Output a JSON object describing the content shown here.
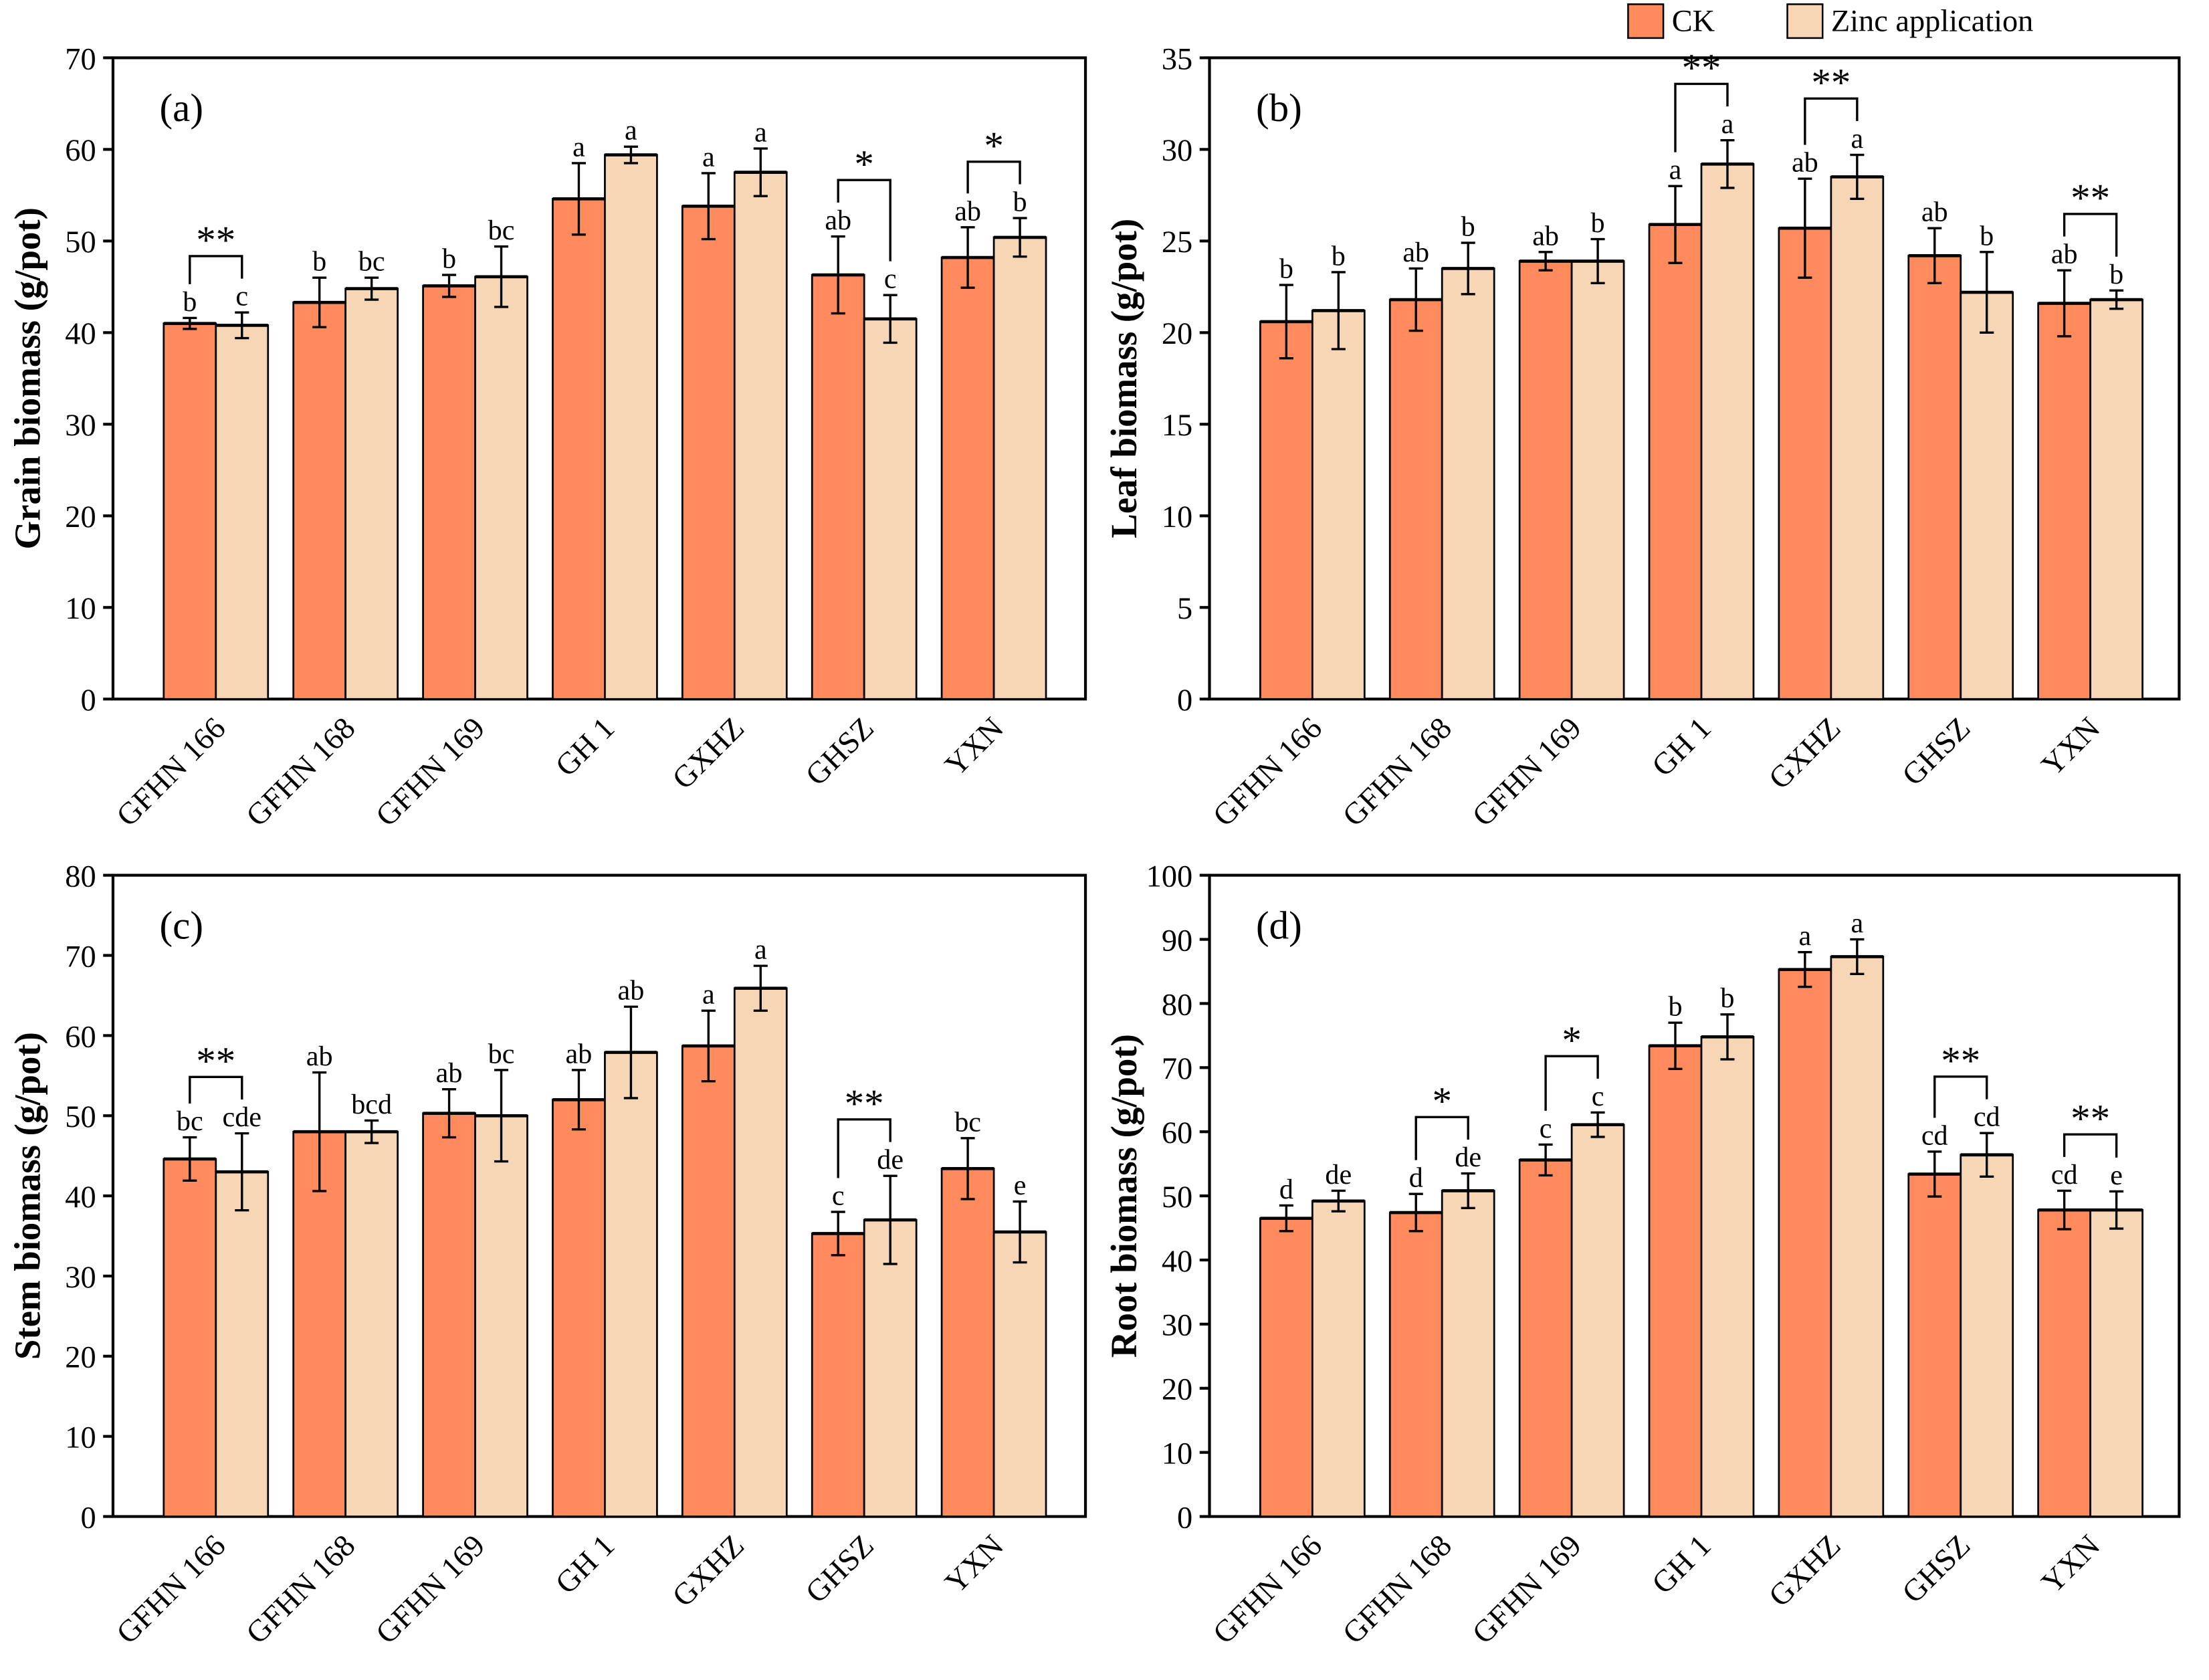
{
  "legend": {
    "items": [
      {
        "label": "CK",
        "color": "#FF8A5B"
      },
      {
        "label": "Zinc application",
        "color": "#F7D6B6"
      }
    ]
  },
  "chart_data": [
    {
      "type": "bar",
      "panel_label": "(a)",
      "ylabel": "Grain biomass (g/pot)",
      "ylim": [
        0,
        70
      ],
      "yticks": [
        0,
        10,
        20,
        30,
        40,
        50,
        60,
        70
      ],
      "categories": [
        "GFHN 166",
        "GFHN 168",
        "GFHN 169",
        "GH 1",
        "GXHZ",
        "GHSZ",
        "YXN"
      ],
      "series": [
        {
          "name": "CK",
          "values": [
            41.0,
            43.3,
            45.1,
            54.6,
            53.8,
            46.3,
            48.2
          ],
          "errors": [
            0.6,
            2.7,
            1.2,
            3.9,
            3.6,
            4.2,
            3.3
          ],
          "letters": [
            "b",
            "b",
            "b",
            "a",
            "a",
            "ab",
            "ab"
          ]
        },
        {
          "name": "Zinc application",
          "values": [
            40.8,
            44.8,
            46.1,
            59.4,
            57.5,
            41.5,
            50.4
          ],
          "errors": [
            1.4,
            1.2,
            3.3,
            0.9,
            2.6,
            2.6,
            2.1
          ],
          "letters": [
            "c",
            "bc",
            "bc",
            "a",
            "a",
            "c",
            "b"
          ]
        }
      ],
      "significance": [
        "**",
        "",
        "",
        "",
        "",
        "*",
        "*"
      ]
    },
    {
      "type": "bar",
      "panel_label": "(b)",
      "ylabel": "Leaf biomass (g/pot)",
      "ylim": [
        0,
        35
      ],
      "yticks": [
        0,
        5,
        10,
        15,
        20,
        25,
        30,
        35
      ],
      "categories": [
        "GFHN 166",
        "GFHN 168",
        "GFHN 169",
        "GH 1",
        "GXHZ",
        "GHSZ",
        "YXN"
      ],
      "series": [
        {
          "name": "CK",
          "values": [
            20.6,
            21.8,
            23.9,
            25.9,
            25.7,
            24.2,
            21.6
          ],
          "errors": [
            2.0,
            1.7,
            0.5,
            2.1,
            2.7,
            1.5,
            1.8
          ],
          "letters": [
            "b",
            "ab",
            "ab",
            "a",
            "ab",
            "ab",
            "ab"
          ]
        },
        {
          "name": "Zinc application",
          "values": [
            21.2,
            23.5,
            23.9,
            29.2,
            28.5,
            22.2,
            21.8
          ],
          "errors": [
            2.1,
            1.4,
            1.2,
            1.3,
            1.2,
            2.2,
            0.5
          ],
          "letters": [
            "b",
            "b",
            "b",
            "a",
            "a",
            "b",
            "b"
          ]
        }
      ],
      "significance": [
        "",
        "",
        "",
        "**",
        "**",
        "",
        "**"
      ]
    },
    {
      "type": "bar",
      "panel_label": "(c)",
      "ylabel": "Stem biomass (g/pot)",
      "ylim": [
        0,
        80
      ],
      "yticks": [
        0,
        10,
        20,
        30,
        40,
        50,
        60,
        70,
        80
      ],
      "categories": [
        "GFHN 166",
        "GFHN 168",
        "GFHN 169",
        "GH 1",
        "GXHZ",
        "GHSZ",
        "YXN"
      ],
      "series": [
        {
          "name": "CK",
          "values": [
            44.6,
            48.0,
            50.3,
            52.0,
            58.7,
            35.3,
            43.4
          ],
          "errors": [
            2.7,
            7.4,
            3.0,
            3.7,
            4.4,
            2.7,
            3.8
          ],
          "letters": [
            "bc",
            "ab",
            "ab",
            "ab",
            "a",
            "c",
            "bc"
          ]
        },
        {
          "name": "Zinc application",
          "values": [
            43.0,
            48.0,
            50.0,
            57.9,
            65.9,
            37.0,
            35.5
          ],
          "errors": [
            4.8,
            1.4,
            5.7,
            5.7,
            2.8,
            5.5,
            3.8
          ],
          "letters": [
            "cde",
            "bcd",
            "bc",
            "ab",
            "a",
            "de",
            "e"
          ]
        }
      ],
      "significance": [
        "**",
        "",
        "",
        "",
        "",
        "**",
        ""
      ]
    },
    {
      "type": "bar",
      "panel_label": "(d)",
      "ylabel": "Root biomass (g/pot)",
      "ylim": [
        0,
        100
      ],
      "yticks": [
        0,
        10,
        20,
        30,
        40,
        50,
        60,
        70,
        80,
        90,
        100
      ],
      "categories": [
        "GFHN 166",
        "GFHN 168",
        "GFHN 169",
        "GH 1",
        "GXHZ",
        "GHSZ",
        "YXN"
      ],
      "series": [
        {
          "name": "CK",
          "values": [
            46.5,
            47.4,
            55.6,
            73.4,
            85.3,
            53.4,
            47.8
          ],
          "errors": [
            2.0,
            2.9,
            2.4,
            3.6,
            2.7,
            3.5,
            3.0
          ],
          "letters": [
            "d",
            "d",
            "c",
            "b",
            "a",
            "cd",
            "cd"
          ]
        },
        {
          "name": "Zinc application",
          "values": [
            49.2,
            50.8,
            61.1,
            74.8,
            87.3,
            56.4,
            47.8
          ],
          "errors": [
            1.6,
            2.7,
            1.9,
            3.5,
            2.7,
            3.4,
            2.9
          ],
          "letters": [
            "de",
            "de",
            "c",
            "b",
            "a",
            "cd",
            "e"
          ]
        }
      ],
      "significance": [
        "",
        "*",
        "*",
        "",
        "",
        "**",
        "**"
      ]
    }
  ]
}
